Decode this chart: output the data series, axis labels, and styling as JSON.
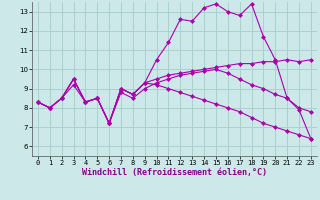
{
  "xlabel": "Windchill (Refroidissement éolien,°C)",
  "background_color": "#cce8e8",
  "grid_color": "#aad0d0",
  "line_color": "#aa00aa",
  "xlim": [
    -0.5,
    23.5
  ],
  "ylim": [
    5.5,
    13.5
  ],
  "xticks": [
    0,
    1,
    2,
    3,
    4,
    5,
    6,
    7,
    8,
    9,
    10,
    11,
    12,
    13,
    14,
    15,
    16,
    17,
    18,
    19,
    20,
    21,
    22,
    23
  ],
  "yticks": [
    6,
    7,
    8,
    9,
    10,
    11,
    12,
    13
  ],
  "lines": [
    {
      "x": [
        0,
        1,
        2,
        3,
        4,
        5,
        6,
        7,
        8,
        9,
        10,
        11,
        12,
        13,
        14,
        15,
        16,
        17,
        18,
        19,
        20,
        21,
        22,
        23
      ],
      "y": [
        8.3,
        8.0,
        8.5,
        9.5,
        8.3,
        8.5,
        7.2,
        9.0,
        8.7,
        9.3,
        9.5,
        9.7,
        9.8,
        9.9,
        10.0,
        10.1,
        10.2,
        10.3,
        10.3,
        10.4,
        10.4,
        10.5,
        10.4,
        10.5
      ]
    },
    {
      "x": [
        0,
        1,
        2,
        3,
        4,
        5,
        6,
        7,
        8,
        9,
        10,
        11,
        12,
        13,
        14,
        15,
        16,
        17,
        18,
        19,
        20,
        21,
        22,
        23
      ],
      "y": [
        8.3,
        8.0,
        8.5,
        9.5,
        8.3,
        8.5,
        7.2,
        9.0,
        8.7,
        9.3,
        10.5,
        11.4,
        12.6,
        12.5,
        13.2,
        13.4,
        13.0,
        12.8,
        13.4,
        11.7,
        10.5,
        8.5,
        7.9,
        6.4
      ]
    },
    {
      "x": [
        0,
        1,
        2,
        3,
        4,
        5,
        6,
        7,
        8,
        9,
        10,
        11,
        12,
        13,
        14,
        15,
        16,
        17,
        18,
        19,
        20,
        21,
        22,
        23
      ],
      "y": [
        8.3,
        8.0,
        8.5,
        9.2,
        8.3,
        8.5,
        7.2,
        8.8,
        8.5,
        9.0,
        9.3,
        9.5,
        9.7,
        9.8,
        9.9,
        10.0,
        9.8,
        9.5,
        9.2,
        9.0,
        8.7,
        8.5,
        8.0,
        7.8
      ]
    },
    {
      "x": [
        0,
        1,
        2,
        3,
        4,
        5,
        6,
        7,
        8,
        9,
        10,
        11,
        12,
        13,
        14,
        15,
        16,
        17,
        18,
        19,
        20,
        21,
        22,
        23
      ],
      "y": [
        8.3,
        8.0,
        8.5,
        9.5,
        8.3,
        8.5,
        7.2,
        9.0,
        8.7,
        9.3,
        9.2,
        9.0,
        8.8,
        8.6,
        8.4,
        8.2,
        8.0,
        7.8,
        7.5,
        7.2,
        7.0,
        6.8,
        6.6,
        6.4
      ]
    }
  ],
  "tick_fontsize": 5.0,
  "xlabel_fontsize": 6.0
}
